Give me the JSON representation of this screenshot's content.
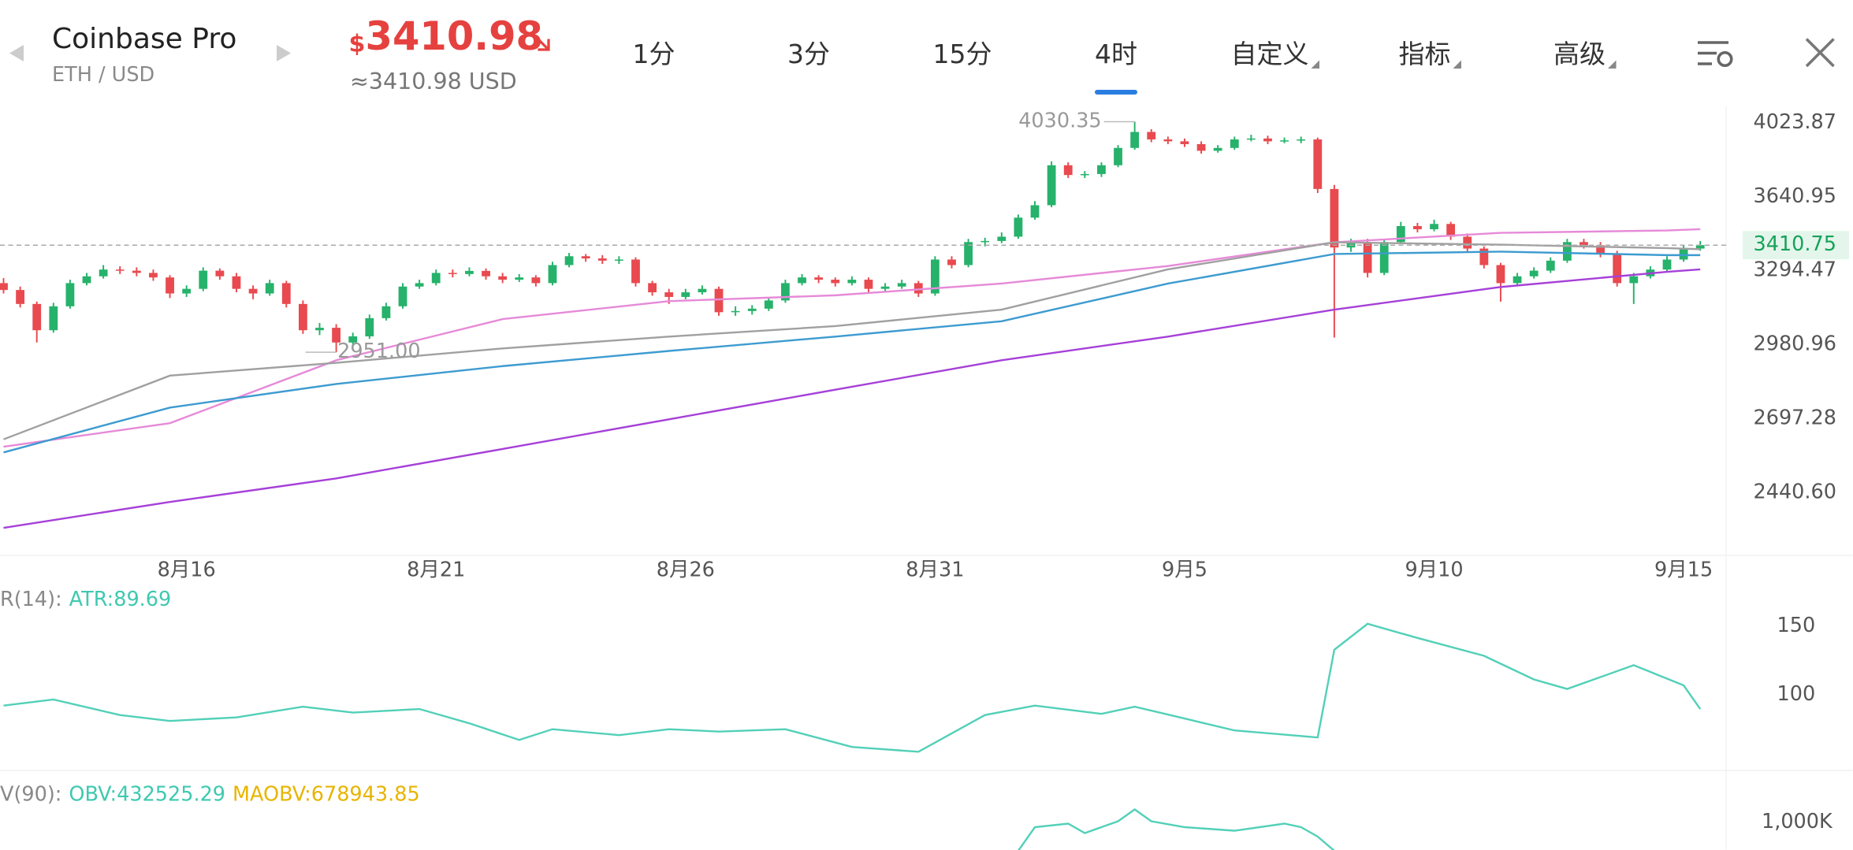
{
  "header": {
    "exchange": "Coinbase Pro",
    "pair": "ETH / USD",
    "currency_sign": "$",
    "price": "3410.98",
    "approx_price": "≈3410.98 USD"
  },
  "tabs": [
    "1分",
    "3分",
    "15分",
    "4时",
    "自定义",
    "指标",
    "高级"
  ],
  "active_tab": 3,
  "chart_data": [
    {
      "type": "candlestick",
      "log": true,
      "ylim": [
        2260,
        4115
      ],
      "yticks": [
        4023.87,
        3640.95,
        3294.47,
        2980.96,
        2697.28,
        {
          "value": 2440.6,
          "label": "2440.60"
        }
      ],
      "up_color": "#26b26b",
      "down_color": "#e84a4f",
      "last_price": 3410.75,
      "annotations": [
        4030.35,
        {
          "value": 2951,
          "label": "2951.00"
        }
      ],
      "categories": [
        null,
        null,
        null,
        null,
        null,
        null,
        null,
        null,
        null,
        null,
        null,
        "8月16",
        null,
        null,
        null,
        null,
        null,
        null,
        null,
        null,
        null,
        null,
        null,
        null,
        null,
        null,
        "8月21",
        null,
        null,
        null,
        null,
        null,
        null,
        null,
        null,
        null,
        null,
        null,
        null,
        null,
        null,
        "8月26",
        null,
        null,
        null,
        null,
        null,
        null,
        null,
        null,
        null,
        null,
        null,
        null,
        null,
        null,
        "8月31",
        null,
        null,
        null,
        null,
        null,
        null,
        null,
        null,
        null,
        null,
        null,
        null,
        null,
        null,
        "9月5",
        null,
        null,
        null,
        null,
        null,
        null,
        null,
        null,
        null,
        null,
        null,
        null,
        null,
        null,
        "9月10",
        null,
        null,
        null,
        null,
        null,
        null,
        null,
        null,
        null,
        null,
        null,
        null,
        null,
        null,
        "9月15",
        null
      ],
      "ohlc": [
        [
          3240,
          3262,
          3195,
          3210
        ],
        [
          3210,
          3225,
          3135,
          3150
        ],
        [
          3150,
          3160,
          2990,
          3040
        ],
        [
          3040,
          3155,
          3030,
          3140
        ],
        [
          3140,
          3255,
          3130,
          3240
        ],
        [
          3240,
          3285,
          3230,
          3270
        ],
        [
          3270,
          3320,
          3260,
          3300
        ],
        [
          3300,
          3315,
          3280,
          3295
        ],
        [
          3295,
          3310,
          3270,
          3285
        ],
        [
          3285,
          3300,
          3250,
          3265
        ],
        [
          3265,
          3275,
          3175,
          3195
        ],
        [
          3195,
          3230,
          3180,
          3215
        ],
        [
          3215,
          3310,
          3205,
          3295
        ],
        [
          3295,
          3305,
          3255,
          3270
        ],
        [
          3270,
          3285,
          3200,
          3215
        ],
        [
          3215,
          3230,
          3170,
          3195
        ],
        [
          3195,
          3255,
          3185,
          3240
        ],
        [
          3240,
          3250,
          3135,
          3150
        ],
        [
          3150,
          3165,
          3025,
          3040
        ],
        [
          3040,
          3070,
          3020,
          3050
        ],
        [
          3050,
          3065,
          2951,
          2990
        ],
        [
          2990,
          3030,
          2975,
          3015
        ],
        [
          3015,
          3105,
          3005,
          3090
        ],
        [
          3090,
          3155,
          3080,
          3140
        ],
        [
          3140,
          3240,
          3130,
          3225
        ],
        [
          3225,
          3255,
          3215,
          3240
        ],
        [
          3240,
          3300,
          3230,
          3285
        ],
        [
          3285,
          3300,
          3265,
          3280
        ],
        [
          3280,
          3310,
          3270,
          3294
        ],
        [
          3294,
          3305,
          3255,
          3270
        ],
        [
          3270,
          3285,
          3240,
          3255
        ],
        [
          3255,
          3280,
          3245,
          3265
        ],
        [
          3265,
          3275,
          3225,
          3240
        ],
        [
          3240,
          3335,
          3230,
          3320
        ],
        [
          3320,
          3375,
          3310,
          3360
        ],
        [
          3360,
          3370,
          3335,
          3350
        ],
        [
          3350,
          3365,
          3325,
          3340
        ],
        [
          3340,
          3360,
          3325,
          3345
        ],
        [
          3345,
          3355,
          3225,
          3240
        ],
        [
          3240,
          3250,
          3185,
          3200
        ],
        [
          3200,
          3215,
          3150,
          3180
        ],
        [
          3180,
          3215,
          3170,
          3200
        ],
        [
          3200,
          3230,
          3190,
          3215
        ],
        [
          3215,
          3225,
          3100,
          3115
        ],
        [
          3115,
          3140,
          3100,
          3120
        ],
        [
          3120,
          3145,
          3105,
          3130
        ],
        [
          3130,
          3180,
          3120,
          3165
        ],
        [
          3165,
          3255,
          3155,
          3240
        ],
        [
          3240,
          3280,
          3230,
          3265
        ],
        [
          3265,
          3275,
          3240,
          3255
        ],
        [
          3255,
          3265,
          3225,
          3240
        ],
        [
          3240,
          3270,
          3230,
          3255
        ],
        [
          3255,
          3265,
          3200,
          3215
        ],
        [
          3215,
          3240,
          3205,
          3225
        ],
        [
          3225,
          3255,
          3215,
          3240
        ],
        [
          3240,
          3250,
          3180,
          3195
        ],
        [
          3195,
          3360,
          3185,
          3345
        ],
        [
          3345,
          3360,
          3305,
          3320
        ],
        [
          3320,
          3440,
          3310,
          3425
        ],
        [
          3425,
          3445,
          3405,
          3430
        ],
        [
          3430,
          3470,
          3420,
          3450
        ],
        [
          3450,
          3555,
          3440,
          3540
        ],
        [
          3540,
          3620,
          3530,
          3600
        ],
        [
          3600,
          3820,
          3590,
          3800
        ],
        [
          3800,
          3815,
          3735,
          3750
        ],
        [
          3750,
          3770,
          3735,
          3755
        ],
        [
          3755,
          3815,
          3740,
          3800
        ],
        [
          3800,
          3905,
          3790,
          3890
        ],
        [
          3890,
          4030.35,
          3880,
          3975
        ],
        [
          3975,
          3990,
          3920,
          3935
        ],
        [
          3935,
          3950,
          3910,
          3925
        ],
        [
          3925,
          3940,
          3895,
          3910
        ],
        [
          3910,
          3925,
          3860,
          3875
        ],
        [
          3875,
          3905,
          3865,
          3890
        ],
        [
          3890,
          3950,
          3880,
          3935
        ],
        [
          3935,
          3960,
          3925,
          3940
        ],
        [
          3940,
          3955,
          3910,
          3925
        ],
        [
          3925,
          3945,
          3915,
          3930
        ],
        [
          3930,
          3950,
          3915,
          3935
        ],
        [
          3935,
          3945,
          3660,
          3680
        ],
        [
          3680,
          3700,
          3010,
          3400
        ],
        [
          3400,
          3440,
          3380,
          3425
        ],
        [
          3425,
          3440,
          3265,
          3285
        ],
        [
          3285,
          3440,
          3275,
          3425
        ],
        [
          3425,
          3520,
          3415,
          3500
        ],
        [
          3500,
          3515,
          3470,
          3485
        ],
        [
          3485,
          3530,
          3475,
          3510
        ],
        [
          3510,
          3520,
          3435,
          3450
        ],
        [
          3450,
          3465,
          3380,
          3395
        ],
        [
          3395,
          3405,
          3305,
          3320
        ],
        [
          3320,
          3330,
          3160,
          3240
        ],
        [
          3240,
          3285,
          3230,
          3270
        ],
        [
          3270,
          3310,
          3260,
          3295
        ],
        [
          3295,
          3355,
          3285,
          3340
        ],
        [
          3340,
          3440,
          3330,
          3425
        ],
        [
          3425,
          3440,
          3395,
          3410
        ],
        [
          3410,
          3425,
          3355,
          3370
        ],
        [
          3370,
          3385,
          3225,
          3240
        ],
        [
          3240,
          3285,
          3150,
          3270
        ],
        [
          3270,
          3315,
          3260,
          3300
        ],
        [
          3300,
          3360,
          3290,
          3345
        ],
        [
          3345,
          3410,
          3335,
          3395
        ],
        [
          3395,
          3430,
          3385,
          3411
        ]
      ],
      "series": [
        {
          "color": "#e68ad8",
          "x": [
            0,
            10,
            20,
            30,
            40,
            50,
            60,
            70,
            80,
            90,
            100,
            102
          ],
          "values": [
            2597,
            2681,
            2919,
            3086,
            3162,
            3187,
            3238,
            3316,
            3424,
            3468,
            3479,
            3485
          ]
        },
        {
          "color": "#a0a0a0",
          "x": [
            0,
            10,
            20,
            30,
            40,
            50,
            60,
            70,
            80,
            90,
            100,
            102
          ],
          "values": [
            2623,
            2859,
            2909,
            2966,
            3014,
            3057,
            3126,
            3301,
            3424,
            3413,
            3397,
            3392
          ]
        },
        {
          "color": "#3d9bd0",
          "x": [
            0,
            10,
            20,
            30,
            40,
            50,
            60,
            70,
            80,
            90,
            100,
            102
          ],
          "values": [
            2577,
            2738,
            2827,
            2896,
            2956,
            3014,
            3077,
            3238,
            3370,
            3381,
            3365,
            3365
          ]
        },
        {
          "color": "#a640d8",
          "x": [
            0,
            10,
            20,
            30,
            40,
            50,
            60,
            70,
            80,
            90,
            100,
            102
          ],
          "values": [
            2327,
            2410,
            2488,
            2589,
            2695,
            2805,
            2919,
            3014,
            3126,
            3223,
            3290,
            3301
          ]
        }
      ]
    },
    {
      "type": "line",
      "indicator": "R(14):",
      "legend": [
        {
          "text": "ATR:89.69",
          "color": "#3fc9b0"
        }
      ],
      "ylim": [
        45,
        180
      ],
      "yticks": [
        150,
        100
      ],
      "series": [
        {
          "color": "#52d0b8",
          "x": [
            0,
            3,
            7,
            10,
            14,
            18,
            21,
            25,
            28,
            31,
            33,
            37,
            40,
            43,
            47,
            51,
            55,
            59,
            62,
            66,
            68,
            71,
            74,
            79,
            80,
            82,
            85,
            89,
            92,
            94,
            98,
            101,
            102
          ],
          "values": [
            92.2,
            96.6,
            85.3,
            81.0,
            83.6,
            91.4,
            87.1,
            89.7,
            79.3,
            67.2,
            75.0,
            70.7,
            75.0,
            73.3,
            75.0,
            62.1,
            58.6,
            85.3,
            92.2,
            86.2,
            91.4,
            82.8,
            74.1,
            69.0,
            132.8,
            151.7,
            141.4,
            128.4,
            111.2,
            104.3,
            121.6,
            106.9,
            89.69
          ]
        }
      ]
    },
    {
      "type": "line",
      "indicator": "V(90):",
      "legend": [
        {
          "text": "OBV:432525.29",
          "color": "#3fc9b0"
        },
        {
          "text": "MAOBV:678943.85",
          "color": "#e8b400"
        }
      ],
      "ylim": [
        520000,
        1720000
      ],
      "yticks": [
        {
          "value": 1000000,
          "label": "1,000K"
        }
      ],
      "series": [
        {
          "color": "#52d0b8",
          "x": [
            61,
            62,
            64,
            65,
            67,
            68,
            69,
            71,
            74,
            77,
            78,
            79,
            80
          ],
          "values": [
            520000,
            920000,
            980000,
            820000,
            1020000,
            1220000,
            1020000,
            920000,
            860000,
            980000,
            920000,
            760000,
            520000
          ]
        }
      ]
    }
  ]
}
